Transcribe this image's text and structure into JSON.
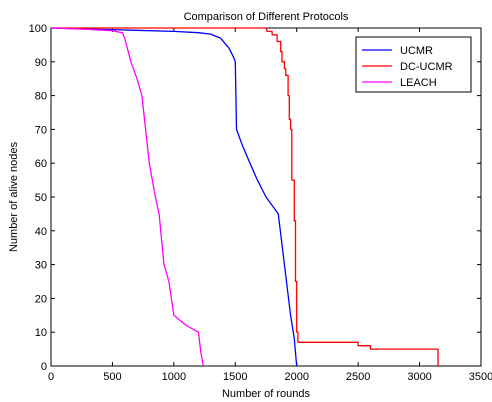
{
  "chart_data": {
    "type": "line",
    "title": "Comparison of Different Protocols",
    "xlabel": "Number of rounds",
    "ylabel": "Number of alive nodes",
    "xlim": [
      0,
      3500
    ],
    "ylim": [
      0,
      100
    ],
    "xticks": [
      0,
      500,
      1000,
      1500,
      2000,
      2500,
      3000,
      3500
    ],
    "yticks": [
      0,
      10,
      20,
      30,
      40,
      50,
      60,
      70,
      80,
      90,
      100
    ],
    "grid": false,
    "legend_position": "top-right",
    "series": [
      {
        "name": "UCMR",
        "color": "#0000ff",
        "x": [
          0,
          200,
          600,
          1000,
          1200,
          1300,
          1380,
          1450,
          1490,
          1500,
          1510,
          1560,
          1620,
          1680,
          1750,
          1850,
          1900,
          1950,
          1980,
          2000
        ],
        "y": [
          100,
          99.8,
          99.4,
          99,
          98.6,
          98.2,
          97,
          94,
          91,
          90,
          70,
          65,
          60,
          55,
          50,
          45,
          30,
          15,
          8,
          0
        ]
      },
      {
        "name": "DC-UCMR",
        "color": "#ff0000",
        "x": [
          0,
          1750,
          1760,
          1800,
          1800,
          1840,
          1840,
          1870,
          1870,
          1880,
          1880,
          1900,
          1900,
          1910,
          1910,
          1930,
          1930,
          1940,
          1940,
          1950,
          1950,
          1960,
          1960,
          1980,
          1980,
          1990,
          1990,
          2000,
          2000,
          2010,
          2010,
          2500,
          2500,
          2600,
          2600,
          3150,
          3150
        ],
        "y": [
          100,
          100,
          99,
          99,
          98,
          98,
          96,
          96,
          93,
          93,
          90,
          90,
          88,
          88,
          86,
          86,
          80,
          80,
          73,
          73,
          70,
          70,
          55,
          55,
          43,
          43,
          25,
          25,
          10,
          10,
          7,
          7,
          6,
          6,
          5,
          5,
          0
        ]
      },
      {
        "name": "LEACH",
        "color": "#ff00ff",
        "x": [
          0,
          300,
          500,
          580,
          600,
          650,
          700,
          740,
          800,
          850,
          880,
          920,
          960,
          1000,
          1100,
          1200,
          1220,
          1240
        ],
        "y": [
          100,
          99.6,
          99.2,
          98.6,
          97,
          90,
          85,
          80,
          60,
          50,
          45,
          30,
          25,
          15,
          12,
          10,
          4,
          0
        ]
      }
    ]
  }
}
